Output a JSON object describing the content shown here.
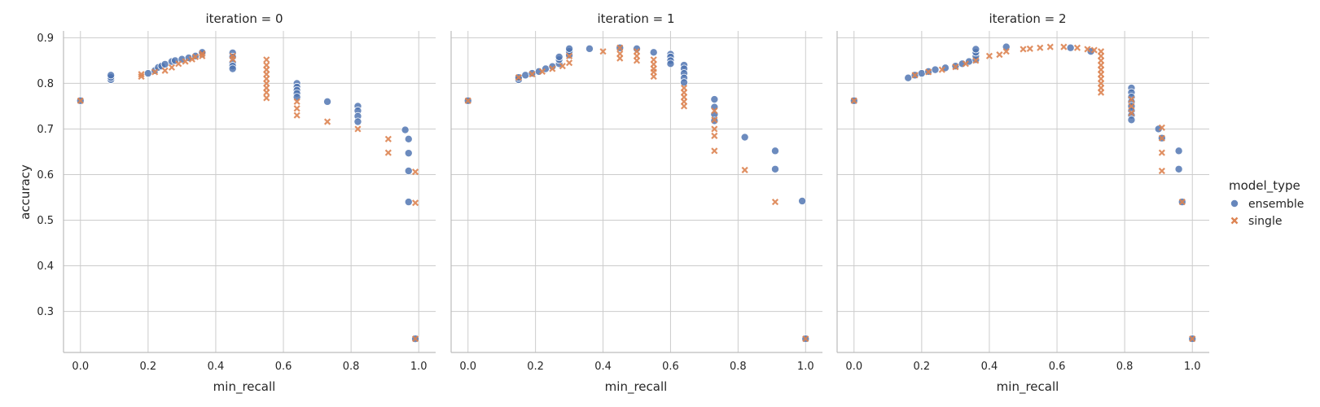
{
  "figure": {
    "legend": {
      "title": "model_type",
      "entries": [
        {
          "label": "ensemble",
          "color": "#4c72b0",
          "marker": "circle"
        },
        {
          "label": "single",
          "color": "#dd8452",
          "marker": "x"
        }
      ],
      "placement": "right-center"
    },
    "ylabel": "accuracy",
    "xlabel": "min_recall"
  },
  "chart_data": [
    {
      "type": "scatter",
      "title": "iteration = 0",
      "xlabel": "min_recall",
      "ylabel": "accuracy",
      "xlim": [
        -0.05,
        1.05
      ],
      "ylim": [
        0.21,
        0.915
      ],
      "xticks": [
        "0.0",
        "0.2",
        "0.4",
        "0.6",
        "0.8",
        "1.0"
      ],
      "yticks": [
        "0.3",
        "0.4",
        "0.5",
        "0.6",
        "0.7",
        "0.8",
        "0.9"
      ],
      "grid": true,
      "series": [
        {
          "name": "ensemble",
          "points": [
            [
              0.0,
              0.762
            ],
            [
              0.09,
              0.808
            ],
            [
              0.09,
              0.813
            ],
            [
              0.09,
              0.818
            ],
            [
              0.2,
              0.822
            ],
            [
              0.22,
              0.828
            ],
            [
              0.23,
              0.835
            ],
            [
              0.24,
              0.838
            ],
            [
              0.25,
              0.842
            ],
            [
              0.27,
              0.848
            ],
            [
              0.28,
              0.85
            ],
            [
              0.3,
              0.853
            ],
            [
              0.32,
              0.856
            ],
            [
              0.34,
              0.86
            ],
            [
              0.36,
              0.864
            ],
            [
              0.36,
              0.868
            ],
            [
              0.45,
              0.867
            ],
            [
              0.45,
              0.858
            ],
            [
              0.45,
              0.845
            ],
            [
              0.45,
              0.838
            ],
            [
              0.45,
              0.832
            ],
            [
              0.64,
              0.8
            ],
            [
              0.64,
              0.792
            ],
            [
              0.64,
              0.785
            ],
            [
              0.64,
              0.778
            ],
            [
              0.64,
              0.77
            ],
            [
              0.73,
              0.76
            ],
            [
              0.82,
              0.75
            ],
            [
              0.82,
              0.74
            ],
            [
              0.82,
              0.728
            ],
            [
              0.82,
              0.716
            ],
            [
              0.96,
              0.698
            ],
            [
              0.97,
              0.678
            ],
            [
              0.97,
              0.647
            ],
            [
              0.97,
              0.608
            ],
            [
              0.97,
              0.54
            ],
            [
              0.99,
              0.24
            ]
          ]
        },
        {
          "name": "single",
          "points": [
            [
              0.0,
              0.762
            ],
            [
              0.18,
              0.815
            ],
            [
              0.18,
              0.82
            ],
            [
              0.22,
              0.825
            ],
            [
              0.25,
              0.828
            ],
            [
              0.27,
              0.835
            ],
            [
              0.29,
              0.843
            ],
            [
              0.31,
              0.848
            ],
            [
              0.33,
              0.853
            ],
            [
              0.34,
              0.858
            ],
            [
              0.36,
              0.86
            ],
            [
              0.36,
              0.865
            ],
            [
              0.45,
              0.853
            ],
            [
              0.45,
              0.86
            ],
            [
              0.55,
              0.852
            ],
            [
              0.55,
              0.84
            ],
            [
              0.55,
              0.83
            ],
            [
              0.55,
              0.82
            ],
            [
              0.55,
              0.81
            ],
            [
              0.55,
              0.8
            ],
            [
              0.55,
              0.79
            ],
            [
              0.55,
              0.78
            ],
            [
              0.55,
              0.768
            ],
            [
              0.64,
              0.76
            ],
            [
              0.64,
              0.745
            ],
            [
              0.64,
              0.73
            ],
            [
              0.73,
              0.716
            ],
            [
              0.82,
              0.7
            ],
            [
              0.91,
              0.678
            ],
            [
              0.91,
              0.648
            ],
            [
              0.99,
              0.606
            ],
            [
              0.99,
              0.538
            ],
            [
              0.99,
              0.24
            ]
          ]
        }
      ]
    },
    {
      "type": "scatter",
      "title": "iteration = 1",
      "xlabel": "min_recall",
      "ylabel": "",
      "xlim": [
        -0.05,
        1.05
      ],
      "ylim": [
        0.21,
        0.915
      ],
      "xticks": [
        "0.0",
        "0.2",
        "0.4",
        "0.6",
        "0.8",
        "1.0"
      ],
      "yticks": [],
      "grid": true,
      "series": [
        {
          "name": "ensemble",
          "points": [
            [
              0.0,
              0.762
            ],
            [
              0.15,
              0.808
            ],
            [
              0.15,
              0.813
            ],
            [
              0.17,
              0.818
            ],
            [
              0.19,
              0.822
            ],
            [
              0.21,
              0.826
            ],
            [
              0.23,
              0.832
            ],
            [
              0.25,
              0.837
            ],
            [
              0.27,
              0.843
            ],
            [
              0.27,
              0.852
            ],
            [
              0.27,
              0.858
            ],
            [
              0.3,
              0.862
            ],
            [
              0.3,
              0.87
            ],
            [
              0.3,
              0.876
            ],
            [
              0.36,
              0.876
            ],
            [
              0.45,
              0.878
            ],
            [
              0.5,
              0.876
            ],
            [
              0.55,
              0.868
            ],
            [
              0.6,
              0.864
            ],
            [
              0.6,
              0.858
            ],
            [
              0.6,
              0.85
            ],
            [
              0.6,
              0.843
            ],
            [
              0.64,
              0.84
            ],
            [
              0.64,
              0.832
            ],
            [
              0.64,
              0.822
            ],
            [
              0.64,
              0.812
            ],
            [
              0.64,
              0.802
            ],
            [
              0.73,
              0.765
            ],
            [
              0.73,
              0.748
            ],
            [
              0.73,
              0.732
            ],
            [
              0.73,
              0.718
            ],
            [
              0.82,
              0.682
            ],
            [
              0.91,
              0.652
            ],
            [
              0.91,
              0.612
            ],
            [
              0.99,
              0.542
            ],
            [
              1.0,
              0.24
            ]
          ]
        },
        {
          "name": "single",
          "points": [
            [
              0.0,
              0.762
            ],
            [
              0.15,
              0.813
            ],
            [
              0.19,
              0.82
            ],
            [
              0.22,
              0.826
            ],
            [
              0.25,
              0.832
            ],
            [
              0.28,
              0.838
            ],
            [
              0.3,
              0.845
            ],
            [
              0.3,
              0.86
            ],
            [
              0.4,
              0.87
            ],
            [
              0.45,
              0.878
            ],
            [
              0.45,
              0.865
            ],
            [
              0.45,
              0.855
            ],
            [
              0.5,
              0.87
            ],
            [
              0.5,
              0.86
            ],
            [
              0.5,
              0.85
            ],
            [
              0.55,
              0.852
            ],
            [
              0.55,
              0.842
            ],
            [
              0.55,
              0.832
            ],
            [
              0.55,
              0.825
            ],
            [
              0.55,
              0.815
            ],
            [
              0.64,
              0.79
            ],
            [
              0.64,
              0.78
            ],
            [
              0.64,
              0.77
            ],
            [
              0.64,
              0.76
            ],
            [
              0.64,
              0.75
            ],
            [
              0.73,
              0.74
            ],
            [
              0.73,
              0.72
            ],
            [
              0.73,
              0.7
            ],
            [
              0.73,
              0.685
            ],
            [
              0.73,
              0.652
            ],
            [
              0.82,
              0.61
            ],
            [
              0.91,
              0.54
            ],
            [
              1.0,
              0.24
            ]
          ]
        }
      ]
    },
    {
      "type": "scatter",
      "title": "iteration = 2",
      "xlabel": "min_recall",
      "ylabel": "",
      "xlim": [
        -0.05,
        1.05
      ],
      "ylim": [
        0.21,
        0.915
      ],
      "xticks": [
        "0.0",
        "0.2",
        "0.4",
        "0.6",
        "0.8",
        "1.0"
      ],
      "yticks": [],
      "grid": true,
      "series": [
        {
          "name": "ensemble",
          "points": [
            [
              0.0,
              0.762
            ],
            [
              0.16,
              0.812
            ],
            [
              0.18,
              0.818
            ],
            [
              0.2,
              0.822
            ],
            [
              0.22,
              0.826
            ],
            [
              0.24,
              0.83
            ],
            [
              0.27,
              0.834
            ],
            [
              0.3,
              0.838
            ],
            [
              0.32,
              0.843
            ],
            [
              0.34,
              0.848
            ],
            [
              0.36,
              0.852
            ],
            [
              0.36,
              0.86
            ],
            [
              0.36,
              0.868
            ],
            [
              0.36,
              0.875
            ],
            [
              0.45,
              0.88
            ],
            [
              0.64,
              0.878
            ],
            [
              0.7,
              0.87
            ],
            [
              0.82,
              0.79
            ],
            [
              0.82,
              0.78
            ],
            [
              0.82,
              0.77
            ],
            [
              0.82,
              0.76
            ],
            [
              0.82,
              0.75
            ],
            [
              0.82,
              0.74
            ],
            [
              0.82,
              0.73
            ],
            [
              0.82,
              0.72
            ],
            [
              0.9,
              0.7
            ],
            [
              0.91,
              0.68
            ],
            [
              0.96,
              0.652
            ],
            [
              0.96,
              0.612
            ],
            [
              0.97,
              0.54
            ],
            [
              1.0,
              0.24
            ]
          ]
        },
        {
          "name": "single",
          "points": [
            [
              0.0,
              0.762
            ],
            [
              0.18,
              0.818
            ],
            [
              0.22,
              0.825
            ],
            [
              0.26,
              0.83
            ],
            [
              0.3,
              0.836
            ],
            [
              0.33,
              0.843
            ],
            [
              0.36,
              0.85
            ],
            [
              0.4,
              0.86
            ],
            [
              0.43,
              0.863
            ],
            [
              0.45,
              0.87
            ],
            [
              0.5,
              0.875
            ],
            [
              0.52,
              0.876
            ],
            [
              0.55,
              0.878
            ],
            [
              0.58,
              0.88
            ],
            [
              0.62,
              0.88
            ],
            [
              0.66,
              0.878
            ],
            [
              0.69,
              0.875
            ],
            [
              0.71,
              0.873
            ],
            [
              0.73,
              0.87
            ],
            [
              0.73,
              0.86
            ],
            [
              0.73,
              0.85
            ],
            [
              0.73,
              0.84
            ],
            [
              0.73,
              0.83
            ],
            [
              0.73,
              0.82
            ],
            [
              0.73,
              0.81
            ],
            [
              0.73,
              0.8
            ],
            [
              0.73,
              0.79
            ],
            [
              0.73,
              0.78
            ],
            [
              0.82,
              0.765
            ],
            [
              0.82,
              0.75
            ],
            [
              0.82,
              0.735
            ],
            [
              0.91,
              0.703
            ],
            [
              0.91,
              0.68
            ],
            [
              0.91,
              0.648
            ],
            [
              0.91,
              0.608
            ],
            [
              0.97,
              0.54
            ],
            [
              1.0,
              0.24
            ]
          ]
        }
      ]
    }
  ]
}
